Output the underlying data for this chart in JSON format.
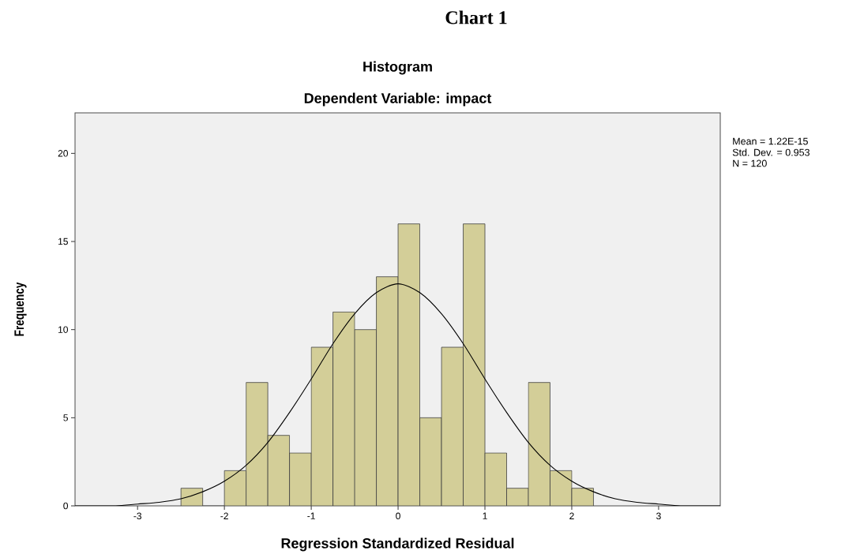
{
  "chart_data": {
    "type": "histogram",
    "title": "Histogram",
    "subtitle": "Dependent Variable: impact",
    "xlabel": "Regression Standardized Residual",
    "ylabel": "Frequency",
    "annotations": [
      "Chart 1",
      "Mean = 1.22E-15",
      "Std. Dev. = 0.953",
      "N = 120"
    ],
    "bins": [
      -2.5,
      -2.25,
      -2.0,
      -1.75,
      -1.5,
      -1.25,
      -1.0,
      -0.75,
      -0.5,
      -0.25,
      0.0,
      0.25,
      0.5,
      0.75,
      1.0,
      1.25,
      1.5,
      1.75,
      2.0,
      2.25
    ],
    "series": [
      {
        "color": "#d3ce98",
        "values": [
          1,
          0,
          2,
          7,
          4,
          3,
          9,
          11,
          10,
          13,
          16,
          5,
          9,
          16,
          3,
          1,
          7,
          2,
          1
        ]
      },
      {
        "type": "line",
        "color": "#000000",
        "x": [
          -3.72,
          -3.5,
          -3.25,
          -3.0,
          -2.75,
          -2.5,
          -2.25,
          -2.0,
          -1.75,
          -1.5,
          -1.25,
          -1.0,
          -0.75,
          -0.5,
          -0.25,
          0.0,
          0.25,
          0.5,
          0.75,
          1.0,
          1.25,
          1.5,
          1.75,
          2.0,
          2.25,
          2.5,
          2.75,
          3.0,
          3.25,
          3.5,
          3.71
        ],
        "values": [
          0.0,
          0.0,
          0.0,
          0.1,
          0.2,
          0.4,
          0.8,
          1.4,
          2.3,
          3.6,
          5.3,
          7.2,
          9.2,
          10.9,
          12.1,
          12.6,
          12.1,
          10.9,
          9.2,
          7.2,
          5.3,
          3.6,
          2.3,
          1.4,
          0.8,
          0.4,
          0.2,
          0.1,
          0.0,
          0.0,
          0.0
        ]
      }
    ],
    "xlim": [
      -3.72,
      3.71
    ],
    "ylim": [
      0,
      22.3
    ],
    "xticks": [
      -3,
      -2,
      -1,
      0,
      1,
      2,
      3
    ],
    "yticks": [
      0,
      5,
      10,
      15,
      20
    ]
  }
}
